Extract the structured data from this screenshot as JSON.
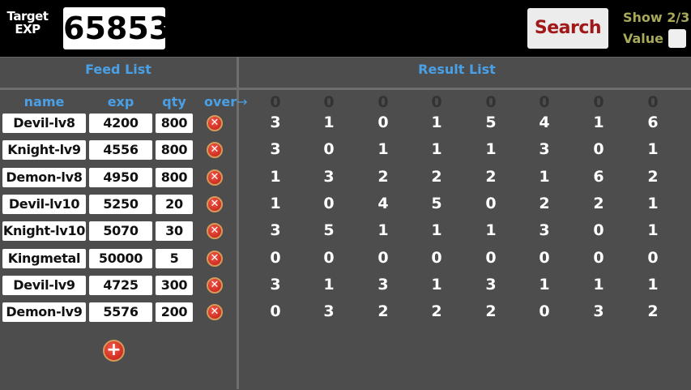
{
  "header": {
    "target_label_line1": "Target",
    "target_label_line2": "EXP",
    "target_value": "65853",
    "search_label": "Search",
    "show_label_line1": "Show 2/3",
    "show_label_line2": "Value",
    "show_checked": false
  },
  "feed": {
    "title": "Feed List",
    "columns": [
      "name",
      "exp",
      "qty",
      "over"
    ],
    "arrow": "→",
    "rows": [
      {
        "name": "Devil-lv8",
        "exp": "4200",
        "qty": "800"
      },
      {
        "name": "Knight-lv9",
        "exp": "4556",
        "qty": "800"
      },
      {
        "name": "Demon-lv8",
        "exp": "4950",
        "qty": "800"
      },
      {
        "name": "Devil-lv10",
        "exp": "5250",
        "qty": "20"
      },
      {
        "name": "Knight-lv10",
        "exp": "5070",
        "qty": "30"
      },
      {
        "name": "Kingmetal",
        "exp": "50000",
        "qty": "5"
      },
      {
        "name": "Devil-lv9",
        "exp": "4725",
        "qty": "300"
      },
      {
        "name": "Demon-lv9",
        "exp": "5576",
        "qty": "200"
      }
    ],
    "delete_icon": "x-circle-icon",
    "add_icon": "plus-circle-icon"
  },
  "result": {
    "title": "Result List",
    "over_row": [
      "0",
      "0",
      "0",
      "0",
      "0",
      "0",
      "0",
      "0"
    ],
    "rows": [
      [
        "3",
        "1",
        "0",
        "1",
        "5",
        "4",
        "1",
        "6"
      ],
      [
        "3",
        "0",
        "1",
        "1",
        "1",
        "3",
        "0",
        "1"
      ],
      [
        "1",
        "3",
        "2",
        "2",
        "2",
        "1",
        "6",
        "2"
      ],
      [
        "1",
        "0",
        "4",
        "5",
        "0",
        "2",
        "2",
        "1"
      ],
      [
        "3",
        "5",
        "1",
        "1",
        "1",
        "3",
        "0",
        "1"
      ],
      [
        "0",
        "0",
        "0",
        "0",
        "0",
        "0",
        "0",
        "0"
      ],
      [
        "3",
        "1",
        "3",
        "1",
        "3",
        "1",
        "1",
        "1"
      ],
      [
        "0",
        "3",
        "2",
        "2",
        "2",
        "0",
        "3",
        "2"
      ]
    ]
  }
}
